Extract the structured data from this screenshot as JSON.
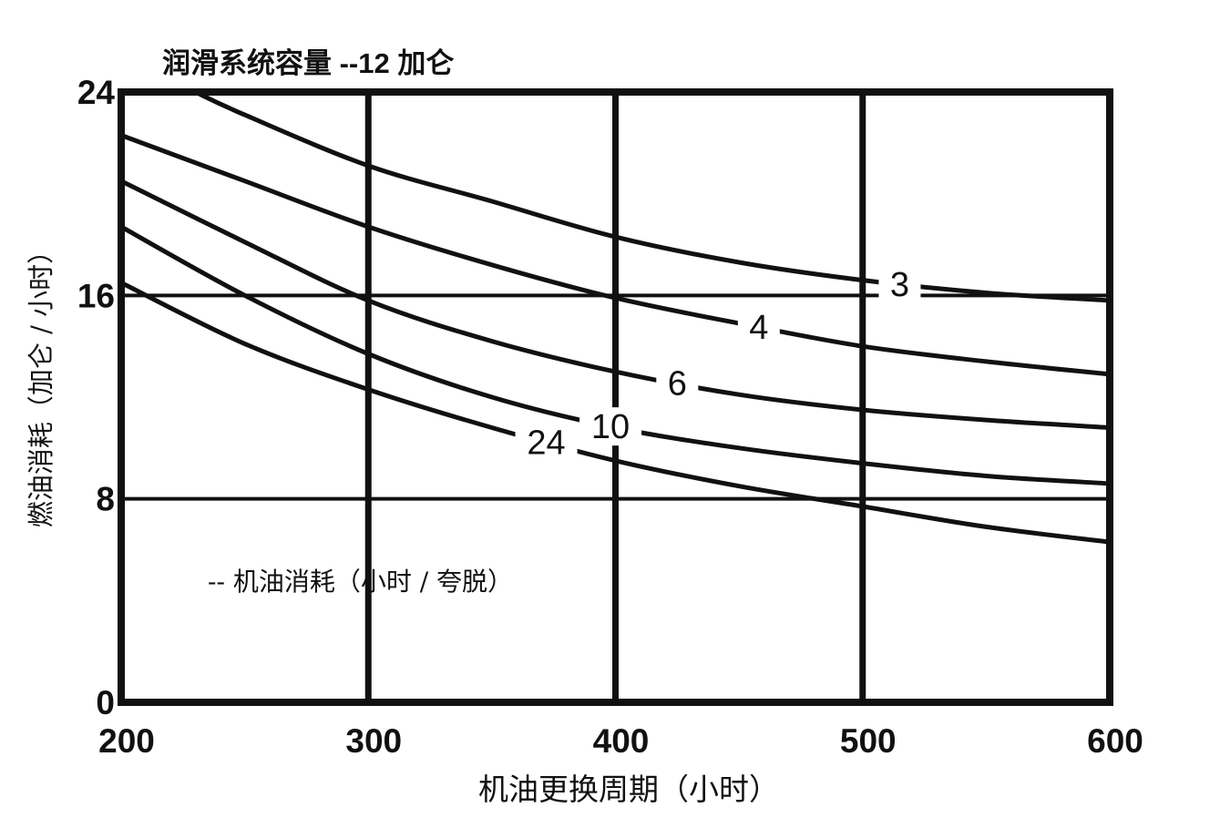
{
  "chart_data": {
    "type": "line",
    "title": "润滑系统容量 --12 加仑",
    "xlabel": "机油更换周期（小时）",
    "ylabel": "燃油消耗（加仑 / 小时）",
    "legend_note": "-- 机油消耗（小时 / 夸脱）",
    "xlim": [
      200,
      600
    ],
    "ylim": [
      0,
      24
    ],
    "x_ticks": [
      "200",
      "300",
      "400",
      "500",
      "600"
    ],
    "y_ticks": [
      "0",
      "8",
      "16",
      "24"
    ],
    "x_grid": [
      300,
      400,
      500
    ],
    "y_grid": [
      8,
      16
    ],
    "series": [
      {
        "name": "3",
        "label_at": 515,
        "points": [
          [
            230,
            24
          ],
          [
            250,
            23.1
          ],
          [
            300,
            21.1
          ],
          [
            350,
            19.7
          ],
          [
            400,
            18.3
          ],
          [
            450,
            17.3
          ],
          [
            500,
            16.6
          ],
          [
            550,
            16.1
          ],
          [
            600,
            15.8
          ]
        ]
      },
      {
        "name": "4",
        "label_at": 458,
        "points": [
          [
            200,
            22.3
          ],
          [
            250,
            20.5
          ],
          [
            300,
            18.7
          ],
          [
            350,
            17.2
          ],
          [
            400,
            15.9
          ],
          [
            450,
            14.9
          ],
          [
            500,
            14.0
          ],
          [
            550,
            13.4
          ],
          [
            600,
            12.9
          ]
        ]
      },
      {
        "name": "6",
        "label_at": 425,
        "points": [
          [
            200,
            20.5
          ],
          [
            250,
            18.1
          ],
          [
            300,
            15.8
          ],
          [
            350,
            14.2
          ],
          [
            400,
            13.0
          ],
          [
            450,
            12.1
          ],
          [
            500,
            11.5
          ],
          [
            550,
            11.1
          ],
          [
            600,
            10.8
          ]
        ]
      },
      {
        "name": "10",
        "label_at": 398,
        "points": [
          [
            200,
            18.7
          ],
          [
            250,
            16.0
          ],
          [
            300,
            13.7
          ],
          [
            350,
            12.0
          ],
          [
            400,
            10.8
          ],
          [
            450,
            10.0
          ],
          [
            500,
            9.4
          ],
          [
            550,
            8.9
          ],
          [
            600,
            8.6
          ]
        ]
      },
      {
        "name": "24",
        "label_at": 372,
        "points": [
          [
            200,
            16.5
          ],
          [
            250,
            14.1
          ],
          [
            300,
            12.3
          ],
          [
            350,
            10.8
          ],
          [
            400,
            9.5
          ],
          [
            450,
            8.5
          ],
          [
            500,
            7.7
          ],
          [
            550,
            6.9
          ],
          [
            600,
            6.3
          ]
        ]
      }
    ]
  }
}
